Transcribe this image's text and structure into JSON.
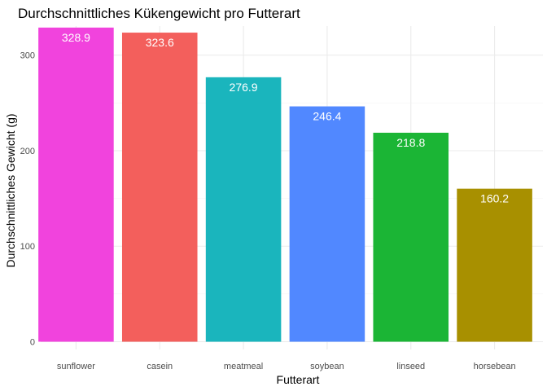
{
  "chart_data": {
    "type": "bar",
    "title": "Durchschnittliches Kükengewicht pro Futterart",
    "xlabel": "Futterart",
    "ylabel": "Durchschnittliches Gewicht (g)",
    "categories": [
      "sunflower",
      "casein",
      "meatmeal",
      "soybean",
      "linseed",
      "horsebean"
    ],
    "values": [
      328.9,
      323.6,
      276.9,
      246.4,
      218.8,
      160.2
    ],
    "value_labels": [
      "328.9",
      "323.6",
      "276.9",
      "246.4",
      "218.8",
      "160.2"
    ],
    "colors": [
      "#F143DD",
      "#F35F5C",
      "#1AB5BD",
      "#5188FF",
      "#1BB535",
      "#A89000"
    ],
    "ylim": [
      0,
      345.4
    ],
    "yticks": [
      0,
      100,
      200,
      300
    ],
    "ytick_labels": [
      "0",
      "100",
      "200",
      "300"
    ],
    "grid": true,
    "legend": "none"
  }
}
